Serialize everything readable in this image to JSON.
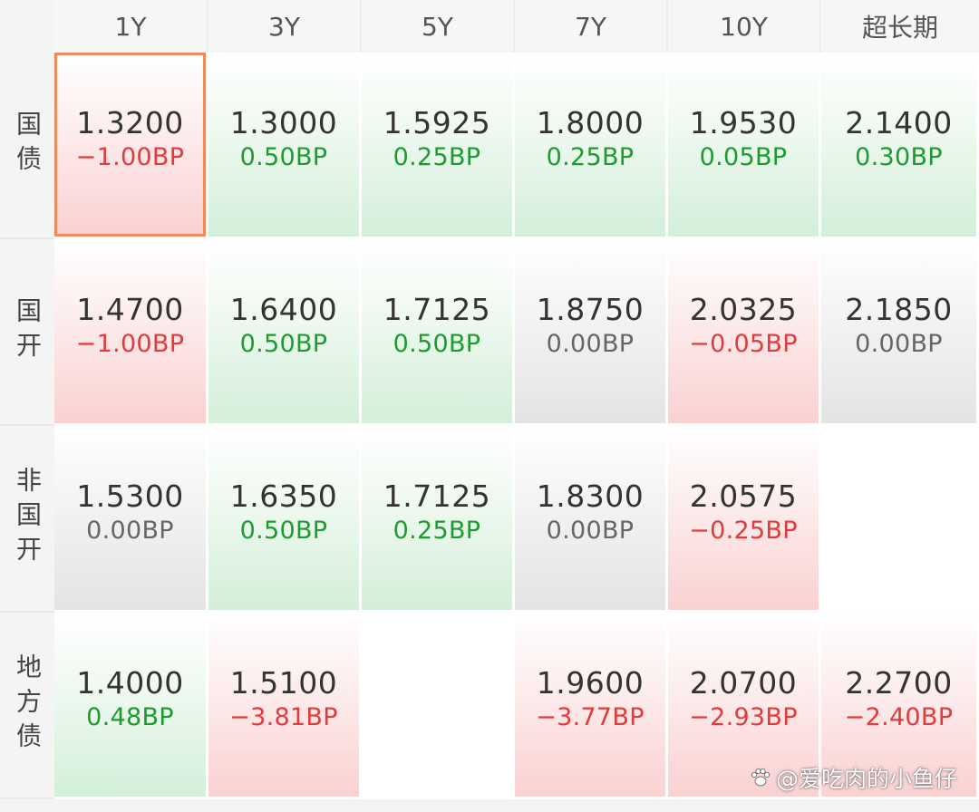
{
  "columns": [
    "1Y",
    "3Y",
    "5Y",
    "7Y",
    "10Y",
    "超长期"
  ],
  "rows": [
    {
      "label": "国债",
      "cells": [
        {
          "value": "1.3200",
          "change": "−1.00BP",
          "trend": "up",
          "selected": true
        },
        {
          "value": "1.3000",
          "change": "0.50BP",
          "trend": "down"
        },
        {
          "value": "1.5925",
          "change": "0.25BP",
          "trend": "down"
        },
        {
          "value": "1.8000",
          "change": "0.25BP",
          "trend": "down"
        },
        {
          "value": "1.9530",
          "change": "0.05BP",
          "trend": "down"
        },
        {
          "value": "2.1400",
          "change": "0.30BP",
          "trend": "down"
        }
      ]
    },
    {
      "label": "国开",
      "cells": [
        {
          "value": "1.4700",
          "change": "−1.00BP",
          "trend": "up"
        },
        {
          "value": "1.6400",
          "change": "0.50BP",
          "trend": "down"
        },
        {
          "value": "1.7125",
          "change": "0.50BP",
          "trend": "down"
        },
        {
          "value": "1.8750",
          "change": "0.00BP",
          "trend": "flat"
        },
        {
          "value": "2.0325",
          "change": "−0.05BP",
          "trend": "up"
        },
        {
          "value": "2.1850",
          "change": "0.00BP",
          "trend": "flat"
        }
      ]
    },
    {
      "label": "非国开",
      "cells": [
        {
          "value": "1.5300",
          "change": "0.00BP",
          "trend": "flat"
        },
        {
          "value": "1.6350",
          "change": "0.50BP",
          "trend": "down"
        },
        {
          "value": "1.7125",
          "change": "0.25BP",
          "trend": "down"
        },
        {
          "value": "1.8300",
          "change": "0.00BP",
          "trend": "flat"
        },
        {
          "value": "2.0575",
          "change": "−0.25BP",
          "trend": "up"
        },
        {
          "value": "",
          "change": "",
          "trend": "empty"
        }
      ]
    },
    {
      "label": "地方债",
      "cells": [
        {
          "value": "1.4000",
          "change": "0.48BP",
          "trend": "down"
        },
        {
          "value": "1.5100",
          "change": "−3.81BP",
          "trend": "up"
        },
        {
          "value": "",
          "change": "",
          "trend": "empty"
        },
        {
          "value": "1.9600",
          "change": "−3.77BP",
          "trend": "up"
        },
        {
          "value": "2.0700",
          "change": "−2.93BP",
          "trend": "up"
        },
        {
          "value": "2.2700",
          "change": "−2.40BP",
          "trend": "up"
        }
      ]
    }
  ],
  "colors": {
    "rise": "#e23b3b",
    "fall": "#1e9b2f",
    "flat": "#666666",
    "selected_border": "#f08a5d",
    "accent": "#ff7a45"
  },
  "watermark": {
    "text": "@爱吃肉的小鱼仔",
    "icon": "paw-icon"
  }
}
